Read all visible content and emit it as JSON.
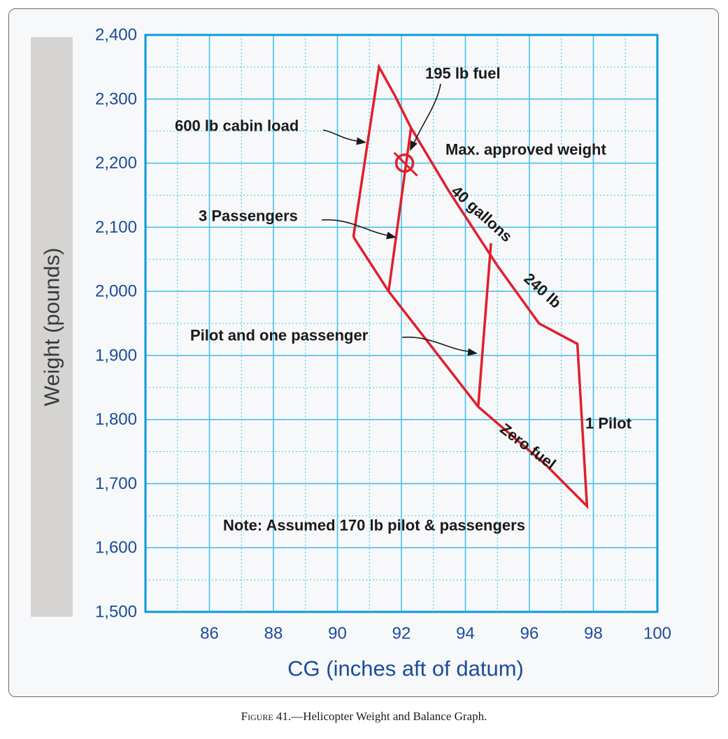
{
  "chart_data": {
    "type": "line",
    "xlabel": "CG (inches aft of datum)",
    "ylabel": "Weight (pounds)",
    "xlim": [
      84,
      100
    ],
    "ylim": [
      1500,
      2400
    ],
    "x_ticks": [
      86,
      88,
      90,
      92,
      94,
      96,
      98,
      100
    ],
    "y_ticks": [
      1500,
      1600,
      1700,
      1800,
      1900,
      2000,
      2100,
      2200,
      2300,
      2400
    ],
    "x_tick_labels": [
      "86",
      "88",
      "90",
      "92",
      "94",
      "96",
      "98",
      "100"
    ],
    "y_tick_labels": [
      "1,500",
      "1,600",
      "1,700",
      "1,800",
      "1,900",
      "2,000",
      "2,100",
      "2,200",
      "2,300",
      "2,400"
    ],
    "grid": true,
    "series": [
      {
        "name": "",
        "role": "envelope",
        "points": [
          [
            90.5,
            2085
          ],
          [
            91.3,
            2350
          ],
          [
            91.8,
            2305
          ],
          [
            92.3,
            2255
          ],
          [
            93.5,
            2155
          ],
          [
            95.0,
            2040
          ],
          [
            96.3,
            1950
          ],
          [
            97.5,
            1918
          ],
          [
            97.8,
            1665
          ],
          [
            96.5,
            1730
          ],
          [
            94.4,
            1820
          ],
          [
            93.0,
            1910
          ],
          [
            91.6,
            2000
          ],
          [
            90.5,
            2085
          ]
        ]
      },
      {
        "name": "3 Passengers",
        "points": [
          [
            91.6,
            2000
          ],
          [
            92.3,
            2255
          ]
        ]
      },
      {
        "name": "Pilot and one passenger",
        "points": [
          [
            94.4,
            1820
          ],
          [
            94.8,
            2075
          ]
        ]
      }
    ],
    "loaded_point": {
      "x": 92.1,
      "y": 2200
    },
    "labels": {
      "fuel_195": "195 lb fuel",
      "cabin_600": "600 lb cabin load",
      "max_weight": "Max. approved weight",
      "three_pass": "3 Passengers",
      "gallons_40": "40 gallons",
      "lb_240": "240 lb",
      "pilot_one": "Pilot and one passenger",
      "zero_fuel": "Zero fuel",
      "one_pilot": "1 Pilot",
      "note": "Note: Assumed 170 lb pilot & passengers"
    }
  },
  "colors": {
    "axis": "#0a9ad6",
    "grid": "#49c0ea",
    "curve": "#e21e2b",
    "ticktext": "#1a4c9a",
    "label": "#1a1a1a",
    "ylabel_bg": "#d5d4d2",
    "ylabel_text": "#3a3a3a"
  },
  "caption": {
    "figure": "Figure 41.",
    "text": "—Helicopter Weight and Balance Graph."
  }
}
